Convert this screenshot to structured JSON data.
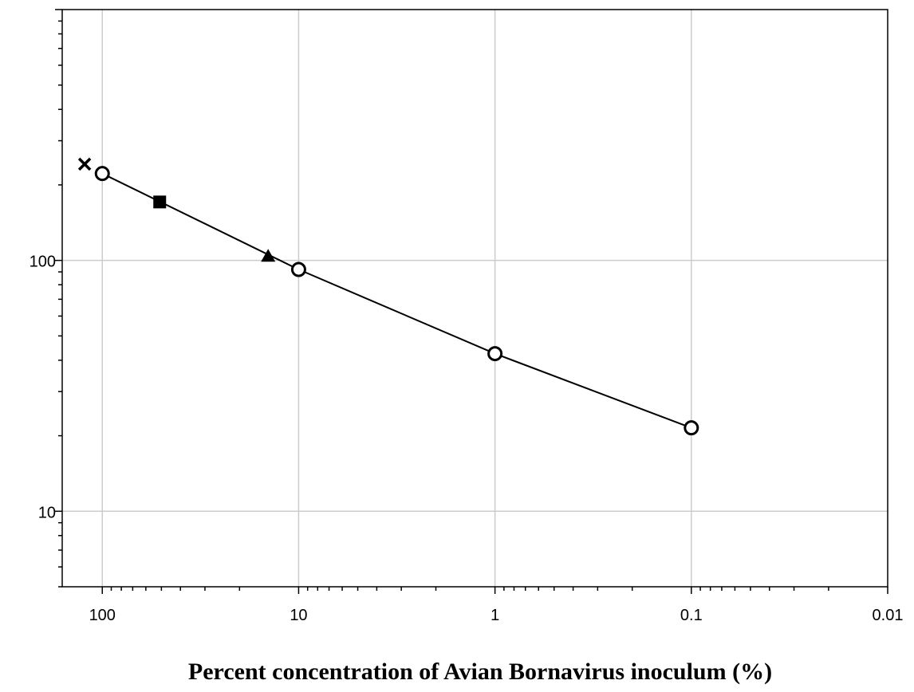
{
  "chart_data": {
    "type": "line",
    "title": "",
    "xlabel": "Percent concentration of Avian Bornavirus inoculum (%)",
    "ylabel": "",
    "x_scale": "log",
    "x_reversed": true,
    "y_scale": "log",
    "xlim": [
      0.01,
      160
    ],
    "ylim": [
      5,
      1000
    ],
    "grid": true,
    "x_major_ticks": [
      100,
      10,
      1,
      0.1,
      0.01
    ],
    "x_tick_labels": [
      "100",
      "10",
      "1",
      "0.1",
      "0.01"
    ],
    "y_major_ticks": [
      10,
      100
    ],
    "y_tick_labels": [
      "10",
      "100"
    ],
    "series": [
      {
        "marker": "open-circle",
        "line": true,
        "points": [
          {
            "x": 100,
            "y": 222
          },
          {
            "x": 10,
            "y": 92
          },
          {
            "x": 1,
            "y": 42.5
          },
          {
            "x": 0.1,
            "y": 21.5
          }
        ]
      }
    ],
    "markers": [
      {
        "marker": "cross",
        "x": 123,
        "y": 242
      },
      {
        "marker": "filled-square",
        "x": 51,
        "y": 171
      },
      {
        "marker": "filled-triangle",
        "x": 14.3,
        "y": 104
      }
    ],
    "colors": {
      "grid": "#cccccc",
      "axis": "#000000",
      "line": "#000000",
      "marker_fill_open": "#ffffff",
      "marker_fill_solid": "#000000"
    }
  }
}
